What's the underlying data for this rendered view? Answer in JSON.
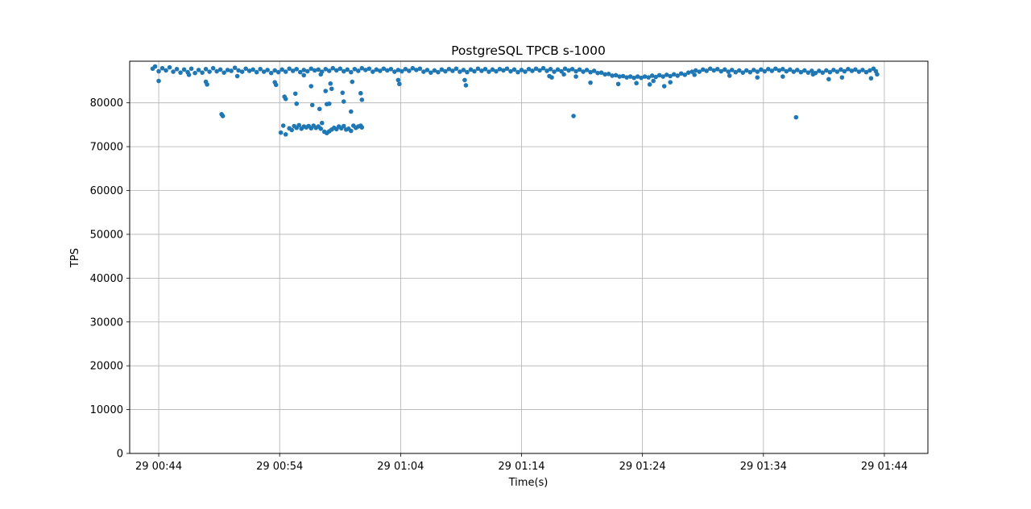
{
  "chart_data": {
    "type": "scatter",
    "title": "PostgreSQL TPCB s-1000",
    "xlabel": "Time(s)",
    "ylabel": "TPS",
    "xlim_minutes": [
      41.6,
      107.6
    ],
    "ylim": [
      0,
      89500
    ],
    "x_ticks": [
      {
        "minute": 44,
        "label": "29 00:44"
      },
      {
        "minute": 54,
        "label": "29 00:54"
      },
      {
        "minute": 64,
        "label": "29 01:04"
      },
      {
        "minute": 74,
        "label": "29 01:14"
      },
      {
        "minute": 84,
        "label": "29 01:24"
      },
      {
        "minute": 94,
        "label": "29 01:34"
      },
      {
        "minute": 104,
        "label": "29 01:44"
      }
    ],
    "y_ticks": [
      {
        "value": 0,
        "label": "0"
      },
      {
        "value": 10000,
        "label": "10000"
      },
      {
        "value": 20000,
        "label": "20000"
      },
      {
        "value": 30000,
        "label": "30000"
      },
      {
        "value": 40000,
        "label": "40000"
      },
      {
        "value": 50000,
        "label": "50000"
      },
      {
        "value": 60000,
        "label": "60000"
      },
      {
        "value": 70000,
        "label": "70000"
      },
      {
        "value": 80000,
        "label": "80000"
      }
    ],
    "grid": true,
    "marker_color": "#1f77b4",
    "series": [
      {
        "points": [
          [
            43.5,
            87800
          ],
          [
            43.7,
            88300
          ],
          [
            44.0,
            87200
          ],
          [
            44.3,
            87900
          ],
          [
            44.6,
            87400
          ],
          [
            44.9,
            88100
          ],
          [
            45.2,
            87100
          ],
          [
            45.5,
            87700
          ],
          [
            45.8,
            86900
          ],
          [
            46.1,
            87600
          ],
          [
            46.4,
            87000
          ],
          [
            46.7,
            87800
          ],
          [
            47.0,
            86800
          ],
          [
            47.3,
            87500
          ],
          [
            47.6,
            86900
          ],
          [
            47.9,
            87700
          ],
          [
            48.2,
            87100
          ],
          [
            48.5,
            87900
          ],
          [
            48.8,
            87200
          ],
          [
            49.1,
            87600
          ],
          [
            49.4,
            86900
          ],
          [
            49.7,
            87500
          ],
          [
            50.0,
            87300
          ],
          [
            50.3,
            88000
          ],
          [
            50.6,
            87400
          ],
          [
            50.9,
            87100
          ],
          [
            51.2,
            87800
          ],
          [
            51.5,
            87300
          ],
          [
            51.8,
            87600
          ],
          [
            52.1,
            87000
          ],
          [
            52.4,
            87700
          ],
          [
            52.7,
            87100
          ],
          [
            53.0,
            87500
          ],
          [
            53.3,
            86800
          ],
          [
            53.6,
            87400
          ],
          [
            53.9,
            87000
          ],
          [
            54.2,
            87600
          ],
          [
            54.5,
            87100
          ],
          [
            54.8,
            87800
          ],
          [
            55.1,
            87300
          ],
          [
            55.4,
            87700
          ],
          [
            55.7,
            87000
          ],
          [
            56.0,
            87500
          ],
          [
            56.3,
            87200
          ],
          [
            56.6,
            87800
          ],
          [
            56.9,
            87400
          ],
          [
            57.2,
            87600
          ],
          [
            57.5,
            87100
          ],
          [
            57.8,
            87700
          ],
          [
            58.1,
            87300
          ],
          [
            58.4,
            87900
          ],
          [
            58.7,
            87400
          ],
          [
            59.0,
            87800
          ],
          [
            59.3,
            87200
          ],
          [
            59.6,
            87600
          ],
          [
            59.9,
            87000
          ],
          [
            60.2,
            87700
          ],
          [
            60.5,
            87300
          ],
          [
            60.8,
            87900
          ],
          [
            61.1,
            87500
          ],
          [
            61.4,
            87800
          ],
          [
            61.7,
            87100
          ],
          [
            62.0,
            87600
          ],
          [
            62.3,
            87300
          ],
          [
            62.6,
            87800
          ],
          [
            62.9,
            87400
          ],
          [
            63.2,
            87700
          ],
          [
            63.5,
            87100
          ],
          [
            63.8,
            87500
          ],
          [
            64.1,
            87200
          ],
          [
            64.4,
            87700
          ],
          [
            64.7,
            87300
          ],
          [
            65.0,
            87900
          ],
          [
            65.3,
            87500
          ],
          [
            65.6,
            87800
          ],
          [
            65.9,
            87100
          ],
          [
            66.2,
            87500
          ],
          [
            66.5,
            86900
          ],
          [
            66.8,
            87400
          ],
          [
            67.1,
            87000
          ],
          [
            67.4,
            87600
          ],
          [
            67.7,
            87200
          ],
          [
            68.0,
            87700
          ],
          [
            68.3,
            87300
          ],
          [
            68.6,
            87800
          ],
          [
            68.9,
            87100
          ],
          [
            69.2,
            87500
          ],
          [
            69.5,
            87000
          ],
          [
            69.8,
            87600
          ],
          [
            70.1,
            87200
          ],
          [
            70.4,
            87800
          ],
          [
            70.7,
            87300
          ],
          [
            71.0,
            87700
          ],
          [
            71.3,
            87100
          ],
          [
            71.6,
            87600
          ],
          [
            71.9,
            87200
          ],
          [
            72.2,
            87700
          ],
          [
            72.5,
            87400
          ],
          [
            72.8,
            87800
          ],
          [
            73.1,
            87200
          ],
          [
            73.4,
            87600
          ],
          [
            73.7,
            87000
          ],
          [
            74.0,
            87500
          ],
          [
            74.3,
            87100
          ],
          [
            74.6,
            87700
          ],
          [
            74.9,
            87300
          ],
          [
            75.2,
            87800
          ],
          [
            75.5,
            87400
          ],
          [
            75.8,
            87900
          ],
          [
            76.1,
            87300
          ],
          [
            76.4,
            87700
          ],
          [
            76.7,
            87100
          ],
          [
            77.0,
            87600
          ],
          [
            77.3,
            87200
          ],
          [
            77.6,
            87800
          ],
          [
            77.9,
            87400
          ],
          [
            78.2,
            87700
          ],
          [
            78.5,
            87200
          ],
          [
            78.8,
            87600
          ],
          [
            79.1,
            87100
          ],
          [
            79.4,
            87500
          ],
          [
            79.7,
            87000
          ],
          [
            80.0,
            87300
          ],
          [
            80.3,
            86800
          ],
          [
            80.6,
            86900
          ],
          [
            80.9,
            86500
          ],
          [
            81.2,
            86600
          ],
          [
            81.5,
            86200
          ],
          [
            81.8,
            86300
          ],
          [
            82.1,
            86000
          ],
          [
            82.4,
            86100
          ],
          [
            82.7,
            85800
          ],
          [
            83.0,
            86000
          ],
          [
            83.3,
            85700
          ],
          [
            83.6,
            86000
          ],
          [
            83.9,
            85700
          ],
          [
            84.2,
            86000
          ],
          [
            84.5,
            85800
          ],
          [
            84.8,
            86200
          ],
          [
            85.1,
            85900
          ],
          [
            85.4,
            86300
          ],
          [
            85.7,
            86000
          ],
          [
            86.0,
            86400
          ],
          [
            86.3,
            86100
          ],
          [
            86.6,
            86500
          ],
          [
            86.9,
            86200
          ],
          [
            87.2,
            86700
          ],
          [
            87.5,
            86400
          ],
          [
            87.8,
            86900
          ],
          [
            88.1,
            87100
          ],
          [
            88.4,
            87400
          ],
          [
            88.7,
            87100
          ],
          [
            89.0,
            87600
          ],
          [
            89.3,
            87300
          ],
          [
            89.6,
            87800
          ],
          [
            89.9,
            87400
          ],
          [
            90.2,
            87700
          ],
          [
            90.5,
            87200
          ],
          [
            90.8,
            87600
          ],
          [
            91.1,
            87100
          ],
          [
            91.4,
            87500
          ],
          [
            91.7,
            87000
          ],
          [
            92.0,
            87400
          ],
          [
            92.3,
            86900
          ],
          [
            92.6,
            87400
          ],
          [
            92.9,
            87000
          ],
          [
            93.2,
            87500
          ],
          [
            93.5,
            87100
          ],
          [
            93.8,
            87600
          ],
          [
            94.1,
            87200
          ],
          [
            94.4,
            87700
          ],
          [
            94.7,
            87300
          ],
          [
            95.0,
            87800
          ],
          [
            95.3,
            87400
          ],
          [
            95.6,
            87700
          ],
          [
            95.9,
            87200
          ],
          [
            96.2,
            87600
          ],
          [
            96.5,
            87100
          ],
          [
            96.8,
            87500
          ],
          [
            97.1,
            87000
          ],
          [
            97.4,
            87400
          ],
          [
            97.7,
            86900
          ],
          [
            98.0,
            87300
          ],
          [
            98.3,
            86800
          ],
          [
            98.6,
            87300
          ],
          [
            98.9,
            86900
          ],
          [
            99.2,
            87400
          ],
          [
            99.5,
            87000
          ],
          [
            99.8,
            87500
          ],
          [
            100.1,
            87100
          ],
          [
            100.4,
            87600
          ],
          [
            100.7,
            87200
          ],
          [
            101.0,
            87700
          ],
          [
            101.3,
            87300
          ],
          [
            101.6,
            87600
          ],
          [
            101.9,
            87100
          ],
          [
            102.2,
            87500
          ],
          [
            102.5,
            87000
          ],
          [
            102.8,
            87400
          ],
          [
            103.1,
            87800
          ],
          [
            103.3,
            87200
          ],
          [
            103.4,
            86500
          ],
          [
            44.0,
            85000
          ],
          [
            46.5,
            86400
          ],
          [
            47.9,
            84800
          ],
          [
            48.0,
            84200
          ],
          [
            49.2,
            77400
          ],
          [
            49.3,
            77000
          ],
          [
            50.5,
            86100
          ],
          [
            53.6,
            84700
          ],
          [
            53.7,
            84100
          ],
          [
            54.4,
            81400
          ],
          [
            54.5,
            80900
          ],
          [
            55.3,
            82100
          ],
          [
            55.4,
            79800
          ],
          [
            56.0,
            86300
          ],
          [
            56.6,
            83800
          ],
          [
            56.7,
            79500
          ],
          [
            57.3,
            78600
          ],
          [
            57.4,
            86500
          ],
          [
            57.8,
            82700
          ],
          [
            57.9,
            79700
          ],
          [
            58.1,
            79800
          ],
          [
            58.2,
            84400
          ],
          [
            58.3,
            83200
          ],
          [
            59.2,
            82300
          ],
          [
            59.3,
            80300
          ],
          [
            59.9,
            78000
          ],
          [
            60.0,
            84800
          ],
          [
            60.7,
            82200
          ],
          [
            60.8,
            80700
          ],
          [
            63.8,
            85200
          ],
          [
            63.9,
            84300
          ],
          [
            69.3,
            85200
          ],
          [
            69.4,
            84000
          ],
          [
            76.3,
            86100
          ],
          [
            76.5,
            85800
          ],
          [
            77.5,
            86500
          ],
          [
            78.3,
            77000
          ],
          [
            78.5,
            86000
          ],
          [
            79.7,
            84600
          ],
          [
            82.0,
            84300
          ],
          [
            83.5,
            84500
          ],
          [
            84.6,
            84200
          ],
          [
            84.9,
            85000
          ],
          [
            85.8,
            83800
          ],
          [
            86.3,
            84700
          ],
          [
            88.3,
            86400
          ],
          [
            91.2,
            86200
          ],
          [
            93.5,
            85800
          ],
          [
            95.6,
            86000
          ],
          [
            96.7,
            76700
          ],
          [
            98.1,
            86500
          ],
          [
            99.4,
            85400
          ],
          [
            100.5,
            85800
          ],
          [
            102.9,
            85600
          ],
          [
            54.1,
            73200
          ],
          [
            54.3,
            74800
          ],
          [
            54.5,
            72800
          ],
          [
            54.8,
            74200
          ],
          [
            55.0,
            73800
          ],
          [
            55.2,
            74700
          ],
          [
            55.4,
            74300
          ],
          [
            55.6,
            74900
          ],
          [
            55.8,
            74100
          ],
          [
            56.0,
            74600
          ],
          [
            56.2,
            74400
          ],
          [
            56.4,
            74700
          ],
          [
            56.6,
            74200
          ],
          [
            56.8,
            74800
          ],
          [
            57.0,
            74300
          ],
          [
            57.2,
            74600
          ],
          [
            57.4,
            74100
          ],
          [
            57.5,
            75400
          ],
          [
            57.7,
            73400
          ],
          [
            57.9,
            73100
          ],
          [
            58.1,
            73500
          ],
          [
            58.3,
            73900
          ],
          [
            58.5,
            74300
          ],
          [
            58.7,
            74000
          ],
          [
            58.9,
            74600
          ],
          [
            59.1,
            74200
          ],
          [
            59.3,
            74700
          ],
          [
            59.5,
            73900
          ],
          [
            59.7,
            74100
          ],
          [
            59.9,
            73600
          ],
          [
            60.1,
            74800
          ],
          [
            60.3,
            74300
          ],
          [
            60.5,
            74600
          ],
          [
            60.7,
            74800
          ],
          [
            60.8,
            74400
          ]
        ]
      }
    ]
  }
}
